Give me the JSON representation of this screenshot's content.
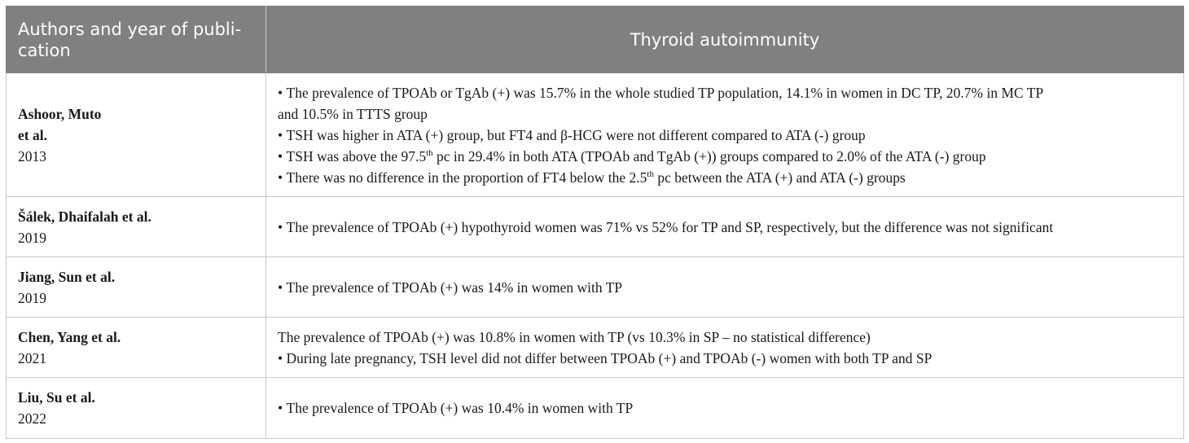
{
  "header": {
    "authors": "Authors and year of publi-cation",
    "authors_line1": "Authors and year of publi-",
    "authors_line2": "cation",
    "thyroid": "Thyroid autoimmunity"
  },
  "rows": [
    {
      "author": "Ashoor, Muto et al.",
      "author_line1": "Ashoor, Muto",
      "author_line2": "et al.",
      "year": "2013",
      "lines": [
        {
          "bullet": true,
          "text": "The prevalence of TPOAb or TgAb (+) was 15.7% in the whole studied TP population, 14.1% in women in DC TP, 20.7% in MC TP"
        },
        {
          "bullet": false,
          "text": "and 10.5% in TTTS group"
        },
        {
          "bullet": true,
          "text": "TSH was higher in ATA (+) group, but FT4 and β-HCG were not different compared to ATA (-) group"
        },
        {
          "bullet": true,
          "pre": "TSH was above the 97.5",
          "sup": "th",
          "post": " pc in 29.4% in both ATA (TPOAb and TgAb (+)) groups compared to 2.0% of the ATA (-) group"
        },
        {
          "bullet": true,
          "pre": "There was no difference in the proportion of FT4 below the 2.5",
          "sup": "th",
          "post": " pc between the ATA (+) and ATA (-) groups"
        }
      ]
    },
    {
      "author": "Šálek, Dhaifalah et al.",
      "year": "2019",
      "lines": [
        {
          "bullet": true,
          "text": "The prevalence of TPOAb (+) hypothyroid women was 71% vs 52% for TP and SP, respectively, but the difference was not significant"
        }
      ]
    },
    {
      "author": "Jiang, Sun et al.",
      "year": "2019",
      "lines": [
        {
          "bullet": true,
          "text": "The prevalence of TPOAb (+) was 14% in women with TP"
        }
      ]
    },
    {
      "author": "Chen, Yang et al.",
      "year": "2021",
      "lines": [
        {
          "bullet": false,
          "text": "The prevalence of TPOAb (+) was 10.8% in women with TP (vs 10.3% in SP – no statistical difference)"
        },
        {
          "bullet": true,
          "text": "During late pregnancy, TSH level did not differ between TPOAb (+) and TPOAb (-) women with both TP and SP"
        }
      ]
    },
    {
      "author": "Liu, Su et al.",
      "year": "2022",
      "lines": [
        {
          "bullet": true,
          "text": "The prevalence of TPOAb (+) was 10.4% in women with TP"
        }
      ]
    }
  ]
}
